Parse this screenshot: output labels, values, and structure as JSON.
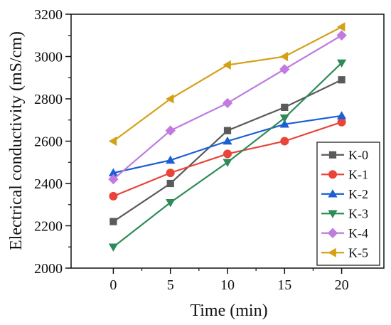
{
  "chart_data": {
    "type": "line",
    "title": "",
    "xlabel": "Time (min)",
    "ylabel": "Electrical conductivity (mS/cm)",
    "x": [
      0,
      5,
      10,
      15,
      20
    ],
    "xlim": [
      -3.7,
      23.7
    ],
    "ylim": [
      2000,
      3200
    ],
    "xticks": [
      0,
      5,
      10,
      15,
      20
    ],
    "yticks": [
      2000,
      2200,
      2400,
      2600,
      2800,
      3000,
      3200
    ],
    "xtick_labels": [
      "0",
      "5",
      "10",
      "15",
      "20"
    ],
    "ytick_labels": [
      "2000",
      "2200",
      "2400",
      "2600",
      "2800",
      "3000",
      "3200"
    ],
    "grid": false,
    "legend_position": "bottom-right",
    "series": [
      {
        "name": "K-0",
        "values": [
          2220,
          2400,
          2650,
          2760,
          2890
        ],
        "color": "#5a5a5a",
        "marker": "square"
      },
      {
        "name": "K-1",
        "values": [
          2340,
          2450,
          2540,
          2600,
          2690
        ],
        "color": "#e8443a",
        "marker": "circle"
      },
      {
        "name": "K-2",
        "values": [
          2450,
          2510,
          2600,
          2680,
          2720
        ],
        "color": "#1a5fd6",
        "marker": "triangle-up"
      },
      {
        "name": "K-3",
        "values": [
          2100,
          2310,
          2500,
          2710,
          2970
        ],
        "color": "#2e8b57",
        "marker": "triangle-down"
      },
      {
        "name": "K-4",
        "values": [
          2420,
          2650,
          2780,
          2940,
          3100
        ],
        "color": "#c07ae0",
        "marker": "diamond"
      },
      {
        "name": "K-5",
        "values": [
          2600,
          2800,
          2960,
          3000,
          3140
        ],
        "color": "#d4a017",
        "marker": "triangle-left"
      }
    ]
  }
}
